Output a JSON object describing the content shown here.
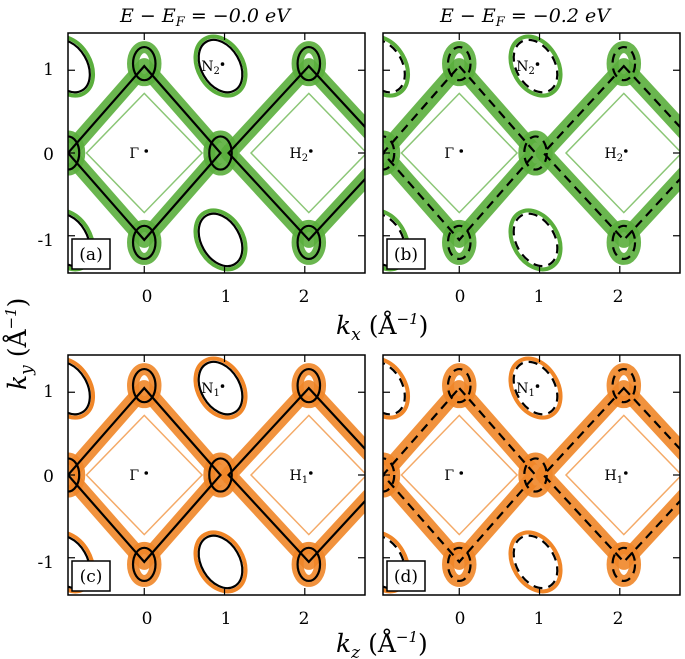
{
  "chart_data": [
    {
      "type": "fermi-surface-contour",
      "panel": "(a)",
      "title": "E − E_F = −0.0 eV",
      "color": "#5aae3c",
      "line_style": "solid",
      "points": [
        {
          "label": "N2",
          "x": 0.95,
          "y": 1.05
        },
        {
          "label": "Γ",
          "x": 0.0,
          "y": 0.0
        },
        {
          "label": "H2",
          "x": 2.05,
          "y": 0.0
        }
      ],
      "xlim": [
        -0.95,
        2.75
      ],
      "ylim": [
        -1.45,
        1.45
      ],
      "xticks": [
        0,
        1,
        2
      ],
      "yticks": [
        -1,
        0,
        1
      ]
    },
    {
      "type": "fermi-surface-contour",
      "panel": "(b)",
      "title": "E − E_F = −0.2 eV",
      "color": "#5aae3c",
      "line_style": "dashed",
      "points": [
        {
          "label": "N2",
          "x": 0.95,
          "y": 1.05
        },
        {
          "label": "Γ",
          "x": 0.0,
          "y": 0.0
        },
        {
          "label": "H2",
          "x": 2.05,
          "y": 0.0
        }
      ],
      "xlim": [
        -0.95,
        2.75
      ],
      "ylim": [
        -1.45,
        1.45
      ],
      "xticks": [
        0,
        1,
        2
      ],
      "yticks": [
        -1,
        0,
        1
      ]
    },
    {
      "type": "fermi-surface-contour",
      "panel": "(c)",
      "title": "",
      "color": "#f08628",
      "line_style": "solid",
      "points": [
        {
          "label": "N1",
          "x": 0.95,
          "y": 1.05
        },
        {
          "label": "Γ",
          "x": 0.0,
          "y": 0.0
        },
        {
          "label": "H1",
          "x": 2.05,
          "y": 0.0
        }
      ],
      "xlim": [
        -0.95,
        2.75
      ],
      "ylim": [
        -1.45,
        1.45
      ],
      "xticks": [
        0,
        1,
        2
      ],
      "yticks": [
        -1,
        0,
        1
      ]
    },
    {
      "type": "fermi-surface-contour",
      "panel": "(d)",
      "title": "",
      "color": "#f08628",
      "line_style": "dashed",
      "points": [
        {
          "label": "N1",
          "x": 0.95,
          "y": 1.05
        },
        {
          "label": "Γ",
          "x": 0.0,
          "y": 0.0
        },
        {
          "label": "H1",
          "x": 2.05,
          "y": 0.0
        }
      ],
      "xlim": [
        -0.95,
        2.75
      ],
      "ylim": [
        -1.45,
        1.45
      ],
      "xticks": [
        0,
        1,
        2
      ],
      "yticks": [
        -1,
        0,
        1
      ]
    }
  ],
  "labels": {
    "title_a": "E − E",
    "title_a_sub": "F",
    "title_a_val": " = −0.0 eV",
    "title_b": "E − E",
    "title_b_sub": "F",
    "title_b_val": " = −0.2 eV",
    "xlabel_top_k": "k",
    "xlabel_top_sub": "x",
    "xlabel_top_unit": " (Å",
    "xlabel_top_exp": "−1",
    "xlabel_top_close": ")",
    "xlabel_bot_k": "k",
    "xlabel_bot_sub": "z",
    "xlabel_bot_unit": " (Å",
    "xlabel_bot_exp": "−1",
    "xlabel_bot_close": ")",
    "ylabel_k": "k",
    "ylabel_sub": "y",
    "ylabel_unit": " (Å",
    "ylabel_exp": "−1",
    "ylabel_close": ")",
    "xtick_0": "0",
    "xtick_1": "1",
    "xtick_2": "2",
    "ytick_p1": "1",
    "ytick_0": "0",
    "ytick_m1": "-1"
  }
}
